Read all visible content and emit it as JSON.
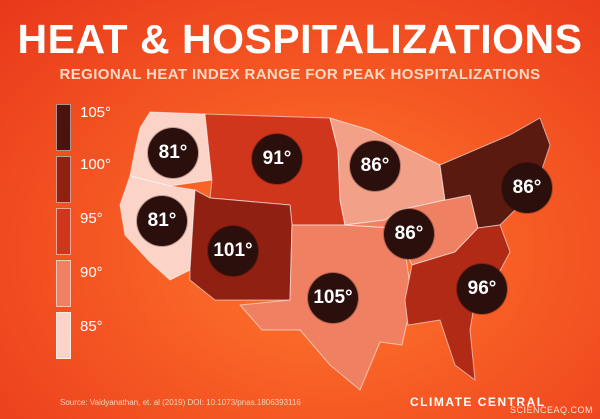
{
  "header": {
    "title": "HEAT & HOSPITALIZATIONS",
    "subtitle": "REGIONAL HEAT INDEX RANGE FOR PEAK HOSPITALIZATIONS"
  },
  "legend": {
    "items": [
      {
        "label": "105°",
        "color": "#4a130d"
      },
      {
        "label": "100°",
        "color": "#8f2012"
      },
      {
        "label": "95°",
        "color": "#d0361c"
      },
      {
        "label": "90°",
        "color": "#f08062"
      },
      {
        "label": "85°",
        "color": "#fbd3c7"
      }
    ]
  },
  "regions": [
    {
      "id": "northwest",
      "label": "81°",
      "color": "#fbd3c7"
    },
    {
      "id": "west",
      "label": "81°",
      "color": "#fbd3c7"
    },
    {
      "id": "northern-rockies-plains",
      "label": "91°",
      "color": "#d0361c"
    },
    {
      "id": "southwest",
      "label": "101°",
      "color": "#8f2012"
    },
    {
      "id": "upper-midwest",
      "label": "86°",
      "color": "#f08062"
    },
    {
      "id": "ohio-valley",
      "label": "86°",
      "color": "#f3a089"
    },
    {
      "id": "northeast",
      "label": "86°",
      "color": "#f08062"
    },
    {
      "id": "south",
      "label": "105°",
      "color": "#5a1a10"
    },
    {
      "id": "southeast",
      "label": "96°",
      "color": "#b02a16"
    }
  ],
  "footer": {
    "source": "Source: Vaidyanathan, et. al (2019) DOI: 10.1073/pnas.1806393116",
    "brand": "CLIMATE CENTRAL",
    "brand_logo": "CO",
    "watermark": "SCIENCEAQ.COM"
  }
}
